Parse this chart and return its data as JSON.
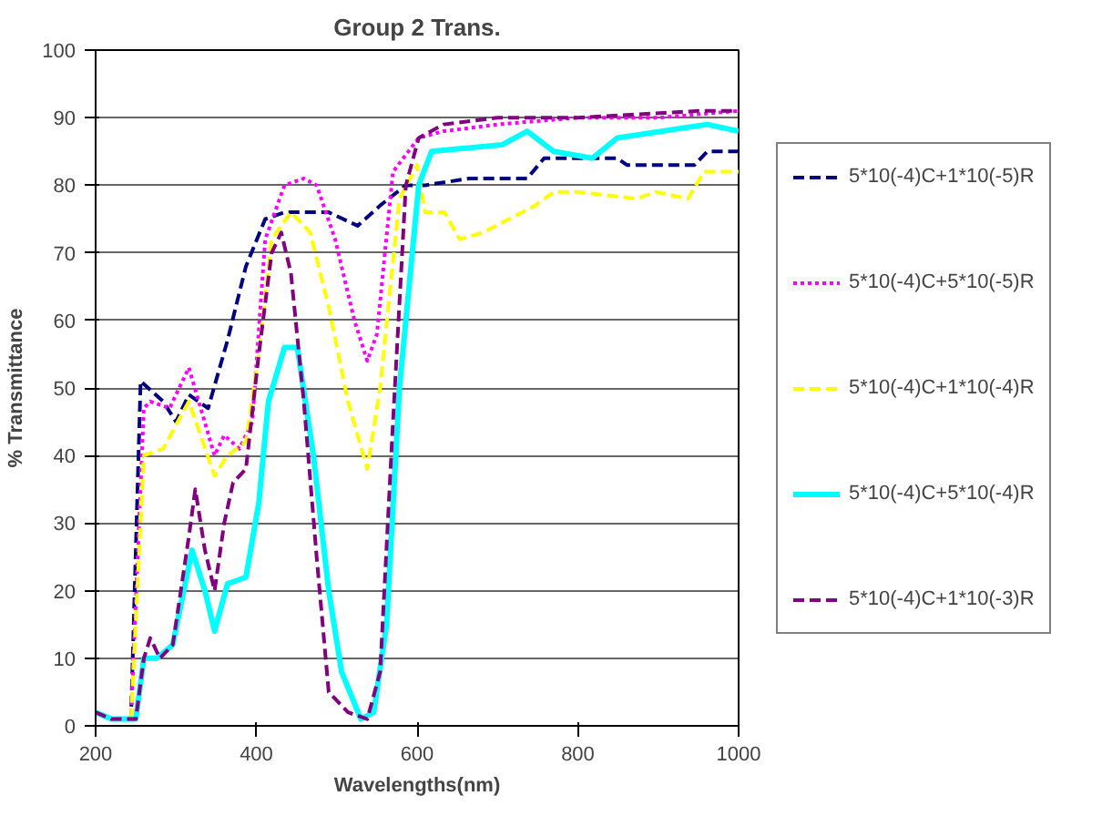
{
  "chart_data": {
    "type": "line",
    "title": "Group 2 Trans.",
    "xlabel": "Wavelengths(nm)",
    "ylabel": "% Transmittance",
    "xlim": [
      200,
      1000
    ],
    "xticks": [
      200,
      400,
      600,
      800,
      1000
    ],
    "ylim": [
      0,
      100
    ],
    "yticks": [
      0,
      10,
      20,
      30,
      40,
      50,
      60,
      70,
      80,
      90,
      100
    ],
    "grid": "y",
    "legend": "right",
    "marker": "none",
    "series": [
      {
        "name": "5*10(-4)C+1*10(-5)R",
        "color": "#000080",
        "line_style": "dashed",
        "x": [
          200,
          220,
          244,
          256,
          284,
          300,
          316,
          340,
          364,
          387,
          411,
          435,
          490,
          526,
          554,
          586,
          610,
          665,
          737,
          758,
          849,
          861,
          945,
          961,
          1000
        ],
        "values": [
          2,
          1,
          1,
          51,
          48,
          45,
          49,
          47,
          57,
          68,
          75,
          76,
          76,
          74,
          77,
          80,
          80,
          81,
          81,
          84,
          84,
          83,
          83,
          85,
          85
        ]
      },
      {
        "name": "5*10(-4)C+5*10(-5)R",
        "color": "#ff00ff",
        "line_style": "dotted",
        "x": [
          200,
          220,
          244,
          260,
          268,
          292,
          316,
          348,
          360,
          379,
          395,
          411,
          435,
          459,
          475,
          498,
          522,
          538,
          550,
          570,
          602,
          633,
          700,
          800,
          900,
          1000
        ],
        "values": [
          2,
          1,
          1,
          47,
          48,
          47,
          53,
          40,
          43,
          41,
          45,
          72,
          80,
          81,
          80,
          72,
          60,
          54,
          58,
          82,
          87,
          88,
          89,
          90,
          90,
          91
        ]
      },
      {
        "name": "5*10(-4)C+1*10(-4)R",
        "color": "#ffff00",
        "line_style": "dashed",
        "x": [
          244,
          260,
          284,
          316,
          348,
          364,
          387,
          403,
          419,
          443,
          467,
          490,
          514,
          538,
          554,
          578,
          600,
          610,
          634,
          653,
          682,
          747,
          770,
          801,
          873,
          897,
          937,
          957,
          1000
        ],
        "values": [
          1,
          40,
          41,
          48,
          37,
          40,
          42,
          55,
          72,
          76,
          73,
          62,
          48,
          38,
          50,
          78,
          83,
          76,
          76,
          72,
          73,
          77,
          79,
          79,
          78,
          79,
          78,
          82,
          82
        ]
      },
      {
        "name": "5*10(-4)C+5*10(-4)R",
        "color": "#00ffff",
        "line_style": "solid",
        "x": [
          200,
          220,
          250,
          260,
          276,
          296,
          320,
          336,
          348,
          364,
          387,
          403,
          415,
          435,
          451,
          471,
          490,
          506,
          530,
          546,
          562,
          578,
          602,
          618,
          706,
          737,
          770,
          818,
          849,
          961,
          1000
        ],
        "values": [
          2,
          1,
          1,
          10,
          10,
          12,
          26,
          20,
          14,
          21,
          22,
          33,
          48,
          56,
          56,
          40,
          20,
          8,
          1,
          2,
          15,
          50,
          80,
          85,
          86,
          88,
          85,
          84,
          87,
          89,
          88
        ]
      },
      {
        "name": "5*10(-4)C+1*10(-3)R",
        "color": "#800080",
        "line_style": "dashed",
        "x": [
          200,
          220,
          250,
          260,
          268,
          280,
          296,
          316,
          324,
          336,
          348,
          360,
          371,
          387,
          403,
          419,
          431,
          443,
          459,
          475,
          490,
          514,
          538,
          554,
          570,
          586,
          602,
          633,
          700,
          800,
          950,
          1000
        ],
        "values": [
          2,
          1,
          1,
          10,
          13,
          10,
          12,
          28,
          35,
          26,
          20,
          30,
          36,
          38,
          55,
          70,
          73,
          67,
          48,
          25,
          5,
          2,
          1,
          8,
          45,
          80,
          87,
          89,
          90,
          90,
          91,
          91
        ]
      }
    ]
  }
}
